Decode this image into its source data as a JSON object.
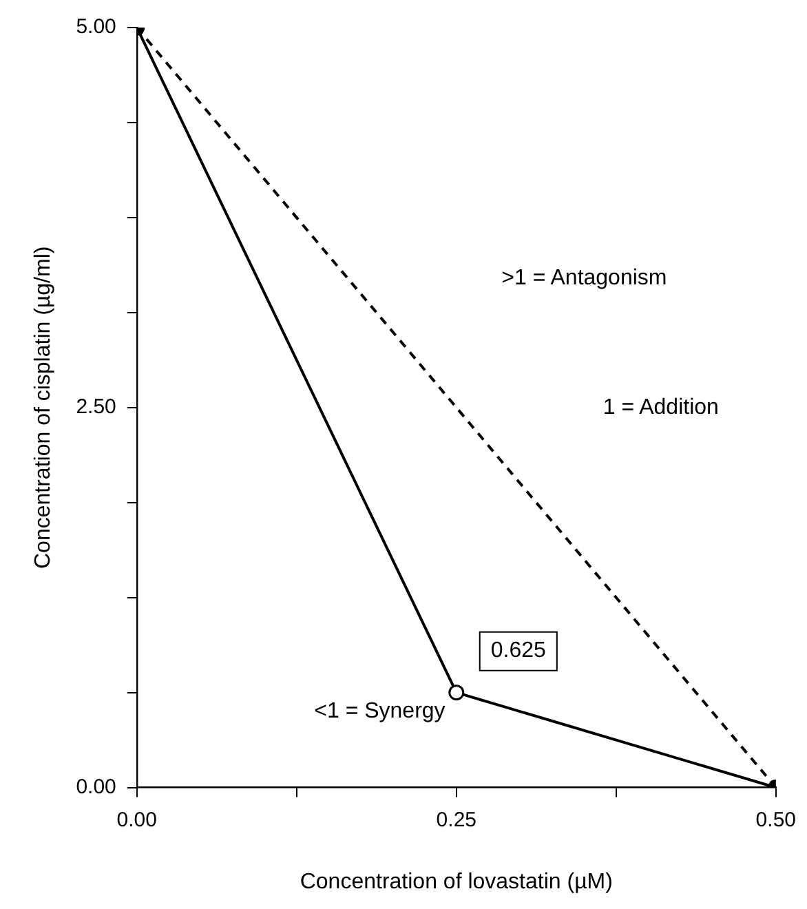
{
  "chart_data": {
    "type": "line",
    "xlabel": "Concentration of lovastatin (µM)",
    "ylabel": "Concentration of cisplatin (µg/ml)",
    "x": [
      0,
      0.25,
      0.5
    ],
    "series": [
      {
        "color": "#000000",
        "values": [
          5,
          0.625,
          0
        ],
        "marker": "circle",
        "line_style": "solid"
      },
      {
        "color": "#000000",
        "x": [
          0,
          0.5
        ],
        "values": [
          5,
          0
        ],
        "marker": "none",
        "line_style": "dashed"
      }
    ],
    "xlim": [
      0,
      0.5
    ],
    "ylim": [
      0,
      5
    ],
    "xticks": [
      {
        "value": 0,
        "label": "0.00"
      },
      {
        "value": 0.125,
        "label": null
      },
      {
        "value": 0.25,
        "label": "0.25"
      },
      {
        "value": 0.375,
        "label": null
      },
      {
        "value": 0.5,
        "label": "0.50"
      }
    ],
    "yticks": [
      {
        "value": 0,
        "label": "0.00"
      },
      {
        "value": 0.625,
        "label": null
      },
      {
        "value": 1.25,
        "label": null
      },
      {
        "value": 1.875,
        "label": null
      },
      {
        "value": 2.5,
        "label": "2.50"
      },
      {
        "value": 3.125,
        "label": null
      },
      {
        "value": 3.75,
        "label": null
      },
      {
        "value": 4.375,
        "label": null
      },
      {
        "value": 5,
        "label": "5.00"
      }
    ],
    "grid": false,
    "annotations": [
      ">1 = Antagonism",
      "1 = Addition",
      "<1 = Synergy",
      {
        "text": "0.625",
        "x": 0.25,
        "y": 0.625
      }
    ]
  }
}
